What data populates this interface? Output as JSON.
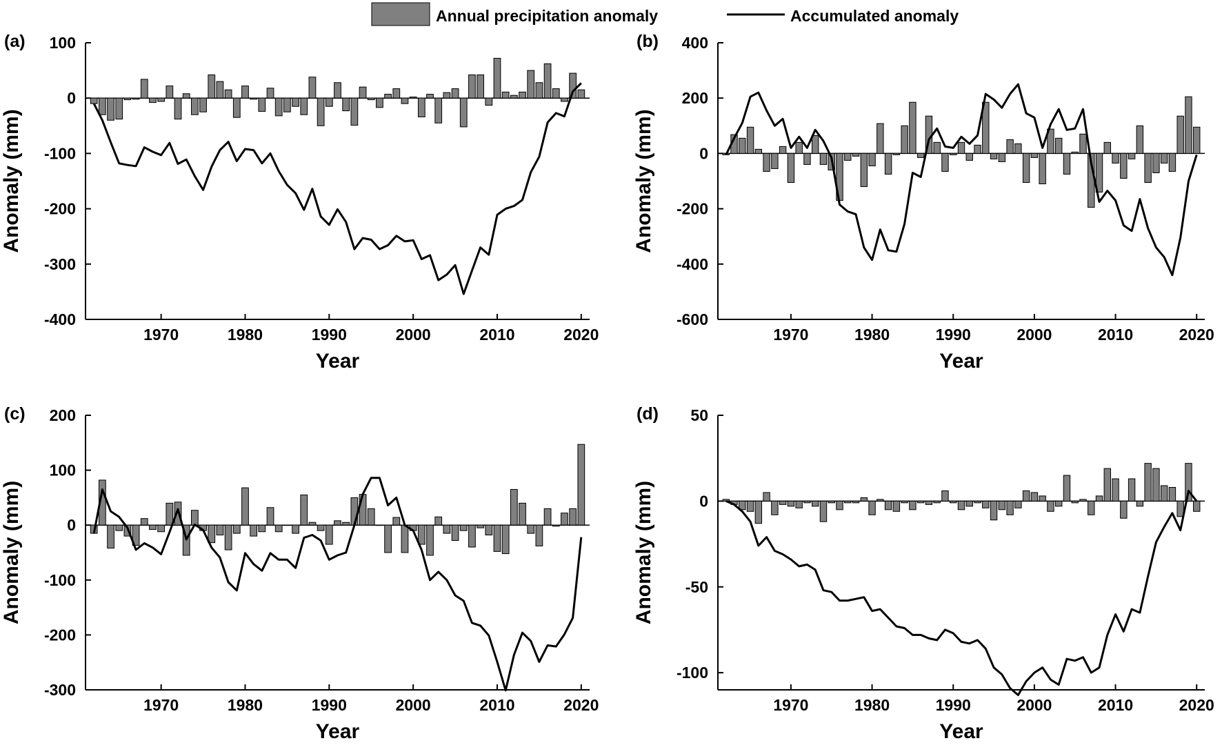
{
  "legend": {
    "bar_label": "Annual precipitation anomaly",
    "line_label": "Accumulated anomaly",
    "bar_color": "#808080",
    "line_color": "#000000"
  },
  "chart_data": [
    {
      "panel": "(a)",
      "type": "bar+line",
      "xlabel": "Year",
      "ylabel": "Anomaly (mm)",
      "xlim": [
        1961,
        2021
      ],
      "ylim": [
        -400,
        100
      ],
      "yticks": [
        -400,
        -300,
        -200,
        -100,
        0,
        100
      ],
      "xticks": [
        1970,
        1980,
        1990,
        2000,
        2010,
        2020
      ],
      "x": [
        1962,
        1963,
        1964,
        1965,
        1966,
        1967,
        1968,
        1969,
        1970,
        1971,
        1972,
        1973,
        1974,
        1975,
        1976,
        1977,
        1978,
        1979,
        1980,
        1981,
        1982,
        1983,
        1984,
        1985,
        1986,
        1987,
        1988,
        1989,
        1990,
        1991,
        1992,
        1993,
        1994,
        1995,
        1996,
        1997,
        1998,
        1999,
        2000,
        2001,
        2002,
        2003,
        2004,
        2005,
        2006,
        2007,
        2008,
        2009,
        2010,
        2011,
        2012,
        2013,
        2014,
        2015,
        2016,
        2017,
        2018,
        2019,
        2020
      ],
      "series": [
        {
          "name": "Annual precipitation anomaly",
          "kind": "bar",
          "values": [
            -10,
            -30,
            -40,
            -38,
            -3,
            -2,
            34,
            -8,
            -6,
            22,
            -38,
            8,
            -30,
            -25,
            42,
            30,
            15,
            -35,
            22,
            -2,
            -24,
            18,
            -32,
            -25,
            -15,
            -30,
            38,
            -50,
            -15,
            28,
            -23,
            -49,
            20,
            -3,
            -17,
            7,
            17,
            -10,
            2,
            -34,
            7,
            -45,
            10,
            17,
            -52,
            42,
            42,
            -13,
            72,
            11,
            5,
            11,
            50,
            28,
            62,
            17,
            -6,
            45,
            15
          ]
        },
        {
          "name": "Accumulated anomaly",
          "kind": "line",
          "values": [
            -10,
            -40,
            -80,
            -118,
            -121,
            -123,
            -89,
            -97,
            -103,
            -81,
            -119,
            -111,
            -141,
            -166,
            -124,
            -94,
            -79,
            -114,
            -92,
            -94,
            -118,
            -100,
            -132,
            -157,
            -172,
            -202,
            -164,
            -214,
            -229,
            -201,
            -224,
            -273,
            -253,
            -256,
            -273,
            -266,
            -249,
            -259,
            -257,
            -291,
            -284,
            -329,
            -319,
            -302,
            -354,
            -312,
            -270,
            -283,
            -211,
            -200,
            -195,
            -184,
            -134,
            -106,
            -44,
            -27,
            -33,
            12,
            27
          ]
        }
      ]
    },
    {
      "panel": "(b)",
      "type": "bar+line",
      "xlabel": "Year",
      "ylabel": "Anomaly (mm)",
      "xlim": [
        1961,
        2021
      ],
      "ylim": [
        -600,
        400
      ],
      "yticks": [
        -600,
        -400,
        -200,
        0,
        200,
        400
      ],
      "xticks": [
        1970,
        1980,
        1990,
        2000,
        2010,
        2020
      ],
      "x": [
        1962,
        1963,
        1964,
        1965,
        1966,
        1967,
        1968,
        1969,
        1970,
        1971,
        1972,
        1973,
        1974,
        1975,
        1976,
        1977,
        1978,
        1979,
        1980,
        1981,
        1982,
        1983,
        1984,
        1985,
        1986,
        1987,
        1988,
        1989,
        1990,
        1991,
        1992,
        1993,
        1994,
        1995,
        1996,
        1997,
        1998,
        1999,
        2000,
        2001,
        2002,
        2003,
        2004,
        2005,
        2006,
        2007,
        2008,
        2009,
        2010,
        2011,
        2012,
        2013,
        2014,
        2015,
        2016,
        2017,
        2018,
        2019,
        2020
      ],
      "series": [
        {
          "name": "Annual precipitation anomaly",
          "kind": "bar",
          "values": [
            -5,
            68,
            55,
            95,
            15,
            -65,
            -55,
            25,
            -105,
            40,
            -40,
            65,
            -40,
            -60,
            -170,
            -25,
            -10,
            -120,
            -45,
            108,
            -75,
            -5,
            100,
            185,
            -15,
            135,
            40,
            -65,
            -5,
            40,
            -25,
            30,
            185,
            -20,
            -30,
            50,
            35,
            -105,
            -15,
            -110,
            88,
            55,
            -75,
            5,
            70,
            -195,
            -140,
            40,
            -35,
            -90,
            -20,
            100,
            -105,
            -70,
            -35,
            -65,
            135,
            205,
            95
          ]
        },
        {
          "name": "Accumulated anomaly",
          "kind": "line",
          "values": [
            -5,
            55,
            110,
            205,
            220,
            155,
            100,
            125,
            20,
            60,
            20,
            85,
            45,
            -15,
            -185,
            -210,
            -220,
            -340,
            -385,
            -275,
            -350,
            -355,
            -255,
            -70,
            -85,
            50,
            90,
            25,
            20,
            60,
            35,
            65,
            215,
            195,
            165,
            215,
            250,
            145,
            130,
            20,
            105,
            160,
            85,
            90,
            160,
            -35,
            -175,
            -135,
            -170,
            -260,
            -280,
            -165,
            -270,
            -340,
            -375,
            -440,
            -305,
            -100,
            -5
          ]
        }
      ]
    },
    {
      "panel": "(c)",
      "type": "bar+line",
      "xlabel": "Year",
      "ylabel": "Anomaly (mm)",
      "xlim": [
        1961,
        2021
      ],
      "ylim": [
        -300,
        200
      ],
      "yticks": [
        -300,
        -200,
        -100,
        0,
        100,
        200
      ],
      "xticks": [
        1970,
        1980,
        1990,
        2000,
        2010,
        2020
      ],
      "x": [
        1962,
        1963,
        1964,
        1965,
        1966,
        1967,
        1968,
        1969,
        1970,
        1971,
        1972,
        1973,
        1974,
        1975,
        1976,
        1977,
        1978,
        1979,
        1980,
        1981,
        1982,
        1983,
        1984,
        1985,
        1986,
        1987,
        1988,
        1989,
        1990,
        1991,
        1992,
        1993,
        1994,
        1995,
        1996,
        1997,
        1998,
        1999,
        2000,
        2001,
        2002,
        2003,
        2004,
        2005,
        2006,
        2007,
        2008,
        2009,
        2010,
        2011,
        2012,
        2013,
        2014,
        2015,
        2016,
        2017,
        2018,
        2019,
        2020
      ],
      "series": [
        {
          "name": "Annual precipitation anomaly",
          "kind": "bar",
          "values": [
            -15,
            82,
            -42,
            -10,
            -20,
            -37,
            12,
            -8,
            -12,
            40,
            42,
            -55,
            27,
            -10,
            -32,
            -18,
            -45,
            -15,
            68,
            -20,
            -12,
            32,
            -12,
            0,
            -15,
            55,
            5,
            -10,
            -35,
            8,
            5,
            50,
            56,
            30,
            0,
            -50,
            14,
            -50,
            -10,
            -35,
            -55,
            15,
            -15,
            -28,
            -10,
            -40,
            -5,
            -18,
            -48,
            -52,
            65,
            40,
            -15,
            -38,
            30,
            -2,
            22,
            30,
            147
          ]
        },
        {
          "name": "Accumulated anomaly",
          "kind": "line",
          "values": [
            -15,
            65,
            25,
            15,
            -5,
            -45,
            -33,
            -41,
            -53,
            -13,
            29,
            -26,
            1,
            -9,
            -41,
            -59,
            -104,
            -119,
            -51,
            -71,
            -83,
            -51,
            -63,
            -63,
            -78,
            -23,
            -18,
            -28,
            -63,
            -55,
            -50,
            0,
            56,
            86,
            86,
            36,
            50,
            0,
            -10,
            -45,
            -100,
            -85,
            -100,
            -128,
            -138,
            -178,
            -183,
            -201,
            -249,
            -301,
            -236,
            -196,
            -211,
            -249,
            -219,
            -221,
            -199,
            -169,
            -22
          ]
        }
      ]
    },
    {
      "panel": "(d)",
      "type": "bar+line",
      "xlabel": "Year",
      "ylabel": "Anomaly (mm)",
      "xlim": [
        1961,
        2021
      ],
      "ylim": [
        -110,
        50
      ],
      "yticks": [
        -100,
        -50,
        0,
        50
      ],
      "xticks": [
        1970,
        1980,
        1990,
        2000,
        2010,
        2020
      ],
      "x": [
        1962,
        1963,
        1964,
        1965,
        1966,
        1967,
        1968,
        1969,
        1970,
        1971,
        1972,
        1973,
        1974,
        1975,
        1976,
        1977,
        1978,
        1979,
        1980,
        1981,
        1982,
        1983,
        1984,
        1985,
        1986,
        1987,
        1988,
        1989,
        1990,
        1991,
        1992,
        1993,
        1994,
        1995,
        1996,
        1997,
        1998,
        1999,
        2000,
        2001,
        2002,
        2003,
        2004,
        2005,
        2006,
        2007,
        2008,
        2009,
        2010,
        2011,
        2012,
        2013,
        2014,
        2015,
        2016,
        2017,
        2018,
        2019,
        2020
      ],
      "series": [
        {
          "name": "Annual precipitation anomaly",
          "kind": "bar",
          "values": [
            1,
            -2,
            -5,
            -6,
            -13,
            5,
            -8,
            -2,
            -3,
            -4,
            -1,
            -3,
            -12,
            -1,
            -5,
            -1,
            -1,
            2,
            -8,
            1,
            -5,
            -6,
            -1,
            -5,
            -1,
            -2,
            -1,
            6,
            -1,
            -5,
            -3,
            -1,
            -4,
            -11,
            -5,
            -8,
            -4,
            6,
            5,
            3,
            -6,
            -3,
            15,
            -1,
            1,
            -8,
            3,
            19,
            13,
            -10,
            13,
            -3,
            22,
            19,
            9,
            8,
            -9,
            22,
            -6
          ]
        },
        {
          "name": "Accumulated anomaly",
          "kind": "line",
          "values": [
            0,
            -2,
            -6,
            -12,
            -26,
            -21,
            -29,
            -31,
            -34,
            -38,
            -37,
            -40,
            -52,
            -53,
            -58,
            -58,
            -57,
            -56,
            -64,
            -63,
            -68,
            -73,
            -74,
            -78,
            -78,
            -80,
            -81,
            -75,
            -77,
            -82,
            -83,
            -81,
            -86,
            -97,
            -101,
            -109,
            -113,
            -105,
            -100,
            -97,
            -104,
            -107,
            -92,
            -93,
            -91,
            -100,
            -97,
            -78,
            -66,
            -76,
            -63,
            -65,
            -44,
            -24,
            -15,
            -7,
            -17,
            6,
            0
          ]
        }
      ]
    }
  ]
}
